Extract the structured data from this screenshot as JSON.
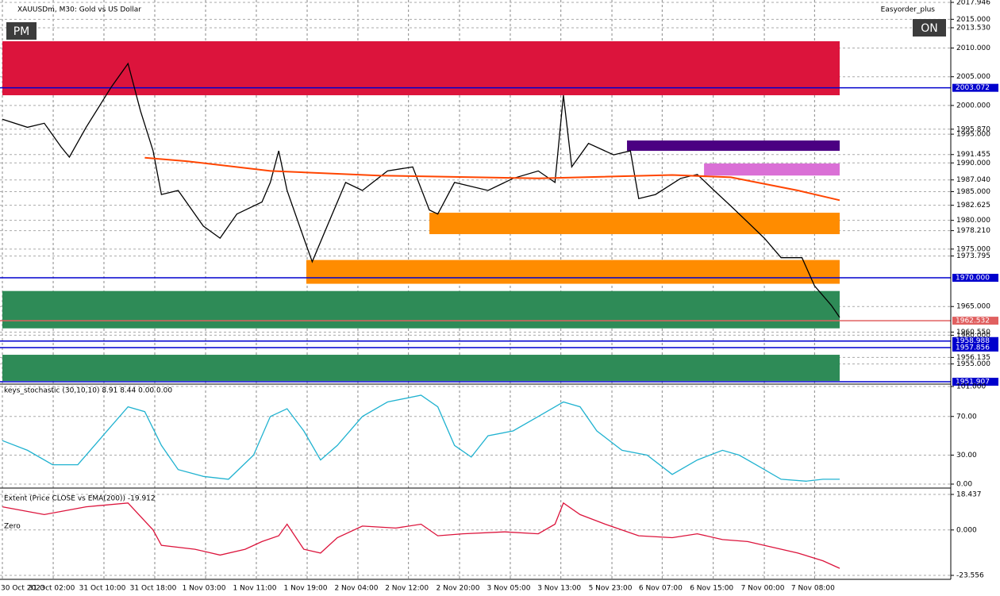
{
  "header": {
    "symbol": "XAUUSDm, M30:  Gold vs US Dollar",
    "expert": "Easyorder_plus",
    "mode": "PM",
    "status": "ON"
  },
  "chart_data": [
    {
      "type": "line",
      "xlim": [
        0,
        100
      ],
      "xticks": [
        {
          "value": 0,
          "label": "30 Oct 2023"
        },
        {
          "value": 6.07,
          "label": "31 Oct 02:00"
        },
        {
          "value": 12.13,
          "label": "31 Oct 10:00"
        },
        {
          "value": 18.2,
          "label": "31 Oct 18:00"
        },
        {
          "value": 24.27,
          "label": "1 Nov 03:00"
        },
        {
          "value": 30.33,
          "label": "1 Nov 11:00"
        },
        {
          "value": 36.4,
          "label": "1 Nov 19:00"
        },
        {
          "value": 42.46,
          "label": "2 Nov 04:00"
        },
        {
          "value": 48.5,
          "label": "2 Nov 12:00"
        },
        {
          "value": 54.6,
          "label": "2 Nov 20:00"
        },
        {
          "value": 60.66,
          "label": "3 Nov 05:00"
        },
        {
          "value": 66.7,
          "label": "3 Nov 13:00"
        },
        {
          "value": 72.8,
          "label": "5 Nov 23:00"
        },
        {
          "value": 78.8,
          "label": "6 Nov 07:00"
        },
        {
          "value": 84.9,
          "label": "6 Nov 15:00"
        },
        {
          "value": 91,
          "label": "7 Nov 00:00"
        },
        {
          "value": 97,
          "label": "7 Nov 08:00"
        }
      ],
      "ylim": [
        1951.907,
        2017.946
      ],
      "yticks": [
        {
          "value": 2017.946,
          "label": "2017.946"
        },
        {
          "value": 2015,
          "label": "2015.000"
        },
        {
          "value": 2013.53,
          "label": "2013.530"
        },
        {
          "value": 2010,
          "label": "2010.000"
        },
        {
          "value": 2005,
          "label": "2005.000"
        },
        {
          "value": 2000,
          "label": "2000.000"
        },
        {
          "value": 1995.87,
          "label": "1995.870"
        },
        {
          "value": 1995,
          "label": "1995.000"
        },
        {
          "value": 1991.455,
          "label": "1991.455"
        },
        {
          "value": 1990,
          "label": "1990.000"
        },
        {
          "value": 1987.04,
          "label": "1987.040"
        },
        {
          "value": 1985,
          "label": "1985.000"
        },
        {
          "value": 1982.625,
          "label": "1982.625"
        },
        {
          "value": 1980,
          "label": "1980.000"
        },
        {
          "value": 1978.21,
          "label": "1978.210"
        },
        {
          "value": 1975,
          "label": "1975.000"
        },
        {
          "value": 1973.795,
          "label": "1973.795"
        },
        {
          "value": 1965,
          "label": "1965.000"
        },
        {
          "value": 1960.55,
          "label": "1960.550"
        },
        {
          "value": 1960,
          "label": "1960.000"
        },
        {
          "value": 1956.135,
          "label": "1956.135"
        },
        {
          "value": 1955,
          "label": "1955.000"
        }
      ],
      "zones": [
        {
          "start": 0,
          "from": 2011.18,
          "to": 2001.78,
          "color": "#dc143c"
        },
        {
          "start": 74.6,
          "from": 1993.9,
          "to": 1992.1,
          "color": "#4b0082"
        },
        {
          "start": 83.8,
          "from": 1989.9,
          "to": 1987.8,
          "color": "#da70d6"
        },
        {
          "start": 51,
          "from": 1981.33,
          "to": 1977.6,
          "color": "#ff8c00"
        },
        {
          "start": 36.3,
          "from": 1973.1,
          "to": 1968.96,
          "color": "#ff8c00"
        },
        {
          "start": 0,
          "from": 1967.7,
          "to": 1961.2,
          "color": "#2e8b57"
        },
        {
          "start": 0,
          "from": 1956.6,
          "to": 1952.05,
          "color": "#2e8b57"
        }
      ],
      "hlines": [
        {
          "value": 2003.072,
          "label": "2003.072",
          "color": "#0000cd"
        },
        {
          "value": 1970,
          "label": "1970.000",
          "color": "#0000cd"
        },
        {
          "value": 1962.532,
          "label": "1962.532",
          "color": "#e06060"
        },
        {
          "value": 1958.988,
          "label": "1958.988",
          "color": "#0000cd"
        },
        {
          "value": 1957.856,
          "label": "1957.856",
          "color": "#0000cd"
        },
        {
          "value": 1951.907,
          "label": "1951.907",
          "color": "#0000cd"
        }
      ],
      "series": [
        {
          "color": "#000000",
          "x": [
            0,
            3,
            5,
            7,
            8,
            10,
            13,
            15,
            16.5,
            18,
            19,
            21,
            24,
            26,
            28,
            31,
            32,
            33,
            34,
            36,
            37,
            39,
            41,
            43,
            46,
            49,
            51,
            52,
            54,
            58,
            61,
            64,
            66,
            67,
            68,
            70,
            73,
            75,
            76,
            78,
            81,
            83,
            85,
            87,
            89,
            91,
            93,
            95.5,
            97,
            99,
            100
          ],
          "values": [
            1997.6,
            1996.2,
            1996.9,
            1992.8,
            1991.0,
            1996.2,
            2003.2,
            2007.3,
            1999.0,
            1992.1,
            1984.5,
            1985.2,
            1979.0,
            1976.9,
            1981.1,
            1983.2,
            1986.6,
            1992.1,
            1985.2,
            1976.9,
            1972.8,
            1979.7,
            1986.6,
            1985.2,
            1988.6,
            1989.3,
            1981.8,
            1981.1,
            1986.6,
            1985.2,
            1987.3,
            1988.6,
            1986.6,
            2001.8,
            1989.3,
            1993.4,
            1991.4,
            1992.1,
            1983.8,
            1984.5,
            1987.3,
            1988.0,
            1985.2,
            1982.5,
            1979.7,
            1976.9,
            1973.5,
            1973.5,
            1968.6,
            1965.2,
            1963.1
          ]
        },
        {
          "color": "#ff4500",
          "x": [
            17,
            22,
            32,
            45,
            64,
            80,
            87,
            95,
            100
          ],
          "values": [
            1990.9,
            1990.3,
            1988.6,
            1987.8,
            1987.3,
            1987.9,
            1987.5,
            1985.2,
            1983.5
          ]
        }
      ]
    },
    {
      "type": "line",
      "title": "keys_stochastic (30,10,10) 8.91 8.44 0.00 0.00",
      "xlim": [
        0,
        100
      ],
      "ylim": [
        0,
        101
      ],
      "yticks": [
        {
          "value": 101,
          "label": "101.000"
        },
        {
          "value": 70,
          "label": "70.00"
        },
        {
          "value": 30,
          "label": "30.00"
        },
        {
          "value": 0,
          "label": "0.00"
        }
      ],
      "series": [
        {
          "color": "#20b2d0",
          "x": [
            0,
            3,
            6,
            9,
            12,
            15,
            17,
            19,
            21,
            24,
            27,
            30,
            32,
            34,
            36,
            38,
            40,
            43,
            46,
            50,
            52,
            54,
            56,
            58,
            61,
            64,
            67,
            69,
            71,
            74,
            77,
            80,
            83,
            86,
            88,
            90,
            93,
            96,
            98,
            100
          ],
          "values": [
            45,
            35,
            20,
            20,
            50,
            80,
            75,
            40,
            15,
            8,
            5,
            30,
            70,
            78,
            55,
            25,
            40,
            70,
            85,
            92,
            80,
            40,
            28,
            50,
            55,
            70,
            85,
            80,
            55,
            35,
            30,
            10,
            25,
            35,
            30,
            20,
            5,
            3,
            5,
            5
          ]
        }
      ]
    },
    {
      "type": "line",
      "title": "Extent (Price CLOSE vs EMA(200)) -19.912",
      "annotation": "Zero",
      "xlim": [
        0,
        100
      ],
      "ylim": [
        -23.556,
        18.437
      ],
      "yticks": [
        {
          "value": 18.437,
          "label": "18.437"
        },
        {
          "value": 0,
          "label": "0.000"
        },
        {
          "value": -23.556,
          "label": "-23.556"
        }
      ],
      "series": [
        {
          "color": "#dc143c",
          "x": [
            0,
            5,
            10,
            15,
            18,
            19,
            23,
            26,
            29,
            31,
            33,
            34,
            36,
            38,
            40,
            43,
            47,
            50,
            52,
            55,
            60,
            64,
            66,
            67,
            69,
            72,
            76,
            80,
            83,
            86,
            89,
            92,
            95,
            98,
            100
          ],
          "values": [
            12,
            8,
            12,
            14,
            0,
            -8,
            -10,
            -13,
            -10,
            -6,
            -3,
            3,
            -10,
            -12,
            -4,
            2,
            1,
            3,
            -3,
            -2,
            -1,
            -2,
            3,
            14,
            8,
            3,
            -3,
            -4,
            -2,
            -5,
            -6,
            -9,
            -12,
            -16,
            -19.9
          ]
        }
      ]
    }
  ]
}
